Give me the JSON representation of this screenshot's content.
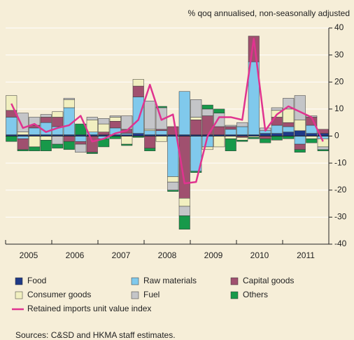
{
  "chart_data": {
    "type": "bar",
    "y_axis_label": "% qoq annualised, non-seasonally adjusted",
    "categories": [
      null,
      "2005",
      null,
      null,
      null,
      "2006",
      null,
      null,
      null,
      "2007",
      null,
      null,
      null,
      "2008",
      null,
      null,
      null,
      "2009",
      null,
      null,
      null,
      "2010",
      null,
      null,
      null,
      "2011",
      null,
      null
    ],
    "stacked": true,
    "series": [
      {
        "name": "Food",
        "color": "#1f3a87",
        "values": [
          0.5,
          0.5,
          0.5,
          0.5,
          0.5,
          0.5,
          0.5,
          0.5,
          0.5,
          0.5,
          0.5,
          1,
          0.5,
          0.5,
          0.5,
          0.5,
          0.5,
          0.5,
          0.5,
          0.5,
          0.5,
          0.5,
          1,
          1,
          1.5,
          2,
          1,
          1
        ]
      },
      {
        "name": "Raw materials",
        "color": "#80c9ec",
        "values": [
          6.5,
          -1,
          2.5,
          4.5,
          3,
          10,
          -2,
          1,
          -1,
          2.5,
          0.5,
          13.5,
          1.5,
          1.5,
          -15,
          16,
          -13,
          -4,
          0,
          2,
          3,
          27,
          1,
          3,
          2,
          -3,
          3,
          -1
        ]
      },
      {
        "name": "Capital goods",
        "color": "#a0506f",
        "values": [
          2.5,
          -4,
          1,
          2,
          3.5,
          -2,
          -1,
          -6,
          1,
          2.5,
          1.5,
          4,
          -4.5,
          0.5,
          3,
          -23,
          5.5,
          7,
          3,
          1,
          -0.5,
          9.5,
          -1,
          3,
          1.5,
          -2,
          3,
          1.5
        ]
      },
      {
        "name": "Consumer goods",
        "color": "#f1efc0",
        "values": [
          5.5,
          1,
          -4,
          -1.5,
          2,
          3,
          0,
          4.5,
          3,
          1.5,
          -3,
          2.5,
          0.5,
          -2,
          -2,
          -3,
          1,
          -1,
          -4,
          -1,
          -1,
          -0.5,
          0,
          2.5,
          5,
          4,
          -1,
          -3
        ]
      },
      {
        "name": "Fuel",
        "color": "#c4c5c8",
        "values": [
          0,
          7,
          3,
          1,
          -3,
          0.5,
          -3,
          1,
          2,
          0.5,
          5,
          0,
          10.5,
          8,
          -3,
          -3.5,
          6.5,
          2.5,
          5,
          0.5,
          1.5,
          0,
          1,
          1,
          4,
          9,
          0.5,
          -1
        ]
      },
      {
        "name": "Others",
        "color": "#17994a",
        "values": [
          -2,
          -0.5,
          -1.5,
          -4,
          -1.5,
          -3,
          4,
          -0.5,
          -3,
          -1,
          -0.5,
          -0.5,
          -1,
          0.5,
          -0.5,
          -5,
          -0.5,
          1.5,
          1.5,
          -4.5,
          -0.5,
          -0.5,
          -1.5,
          -1.5,
          -1,
          -1,
          -1.5,
          -0.5
        ]
      }
    ],
    "line": {
      "name": "Retained imports unit value index",
      "color": "#e0338f",
      "values": [
        12,
        3,
        4.5,
        1.5,
        3,
        4,
        7.5,
        -2,
        -1,
        1,
        2,
        6,
        19,
        6,
        8,
        -17.5,
        -17,
        0,
        7,
        7,
        6,
        36,
        2,
        8,
        11,
        9,
        7,
        -2
      ]
    },
    "ylim": [
      -40,
      40
    ],
    "yticks": [
      -40,
      -30,
      -20,
      -10,
      0,
      10,
      20,
      30,
      40
    ],
    "grid": true,
    "source": "Sources: C&SD and HKMA staff estimates."
  }
}
